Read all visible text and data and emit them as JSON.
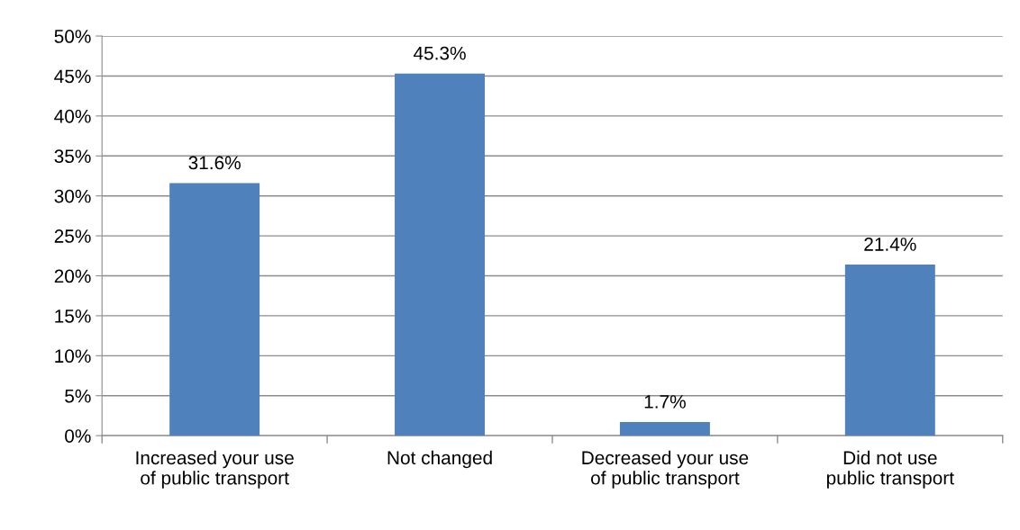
{
  "chart_data": {
    "type": "bar",
    "categories": [
      "Increased your use of public transport",
      "Not changed",
      "Decreased your use of public transport",
      "Did not use public transport"
    ],
    "values": [
      31.6,
      45.3,
      1.7,
      21.4
    ],
    "value_labels": [
      "31.6%",
      "45.3%",
      "1.7%",
      "21.4%"
    ],
    "color": "#4f81bd",
    "ylim": [
      0,
      50
    ],
    "yticks": [
      {
        "value": 0,
        "label": "0%"
      },
      {
        "value": 5,
        "label": "5%"
      },
      {
        "value": 10,
        "label": "10%"
      },
      {
        "value": 15,
        "label": "15%"
      },
      {
        "value": 20,
        "label": "20%"
      },
      {
        "value": 25,
        "label": "25%"
      },
      {
        "value": 30,
        "label": "30%"
      },
      {
        "value": 35,
        "label": "35%"
      },
      {
        "value": 40,
        "label": "40%"
      },
      {
        "value": 45,
        "label": "45%"
      },
      {
        "value": 50,
        "label": "50%"
      }
    ],
    "grid": "y",
    "legend": false
  }
}
